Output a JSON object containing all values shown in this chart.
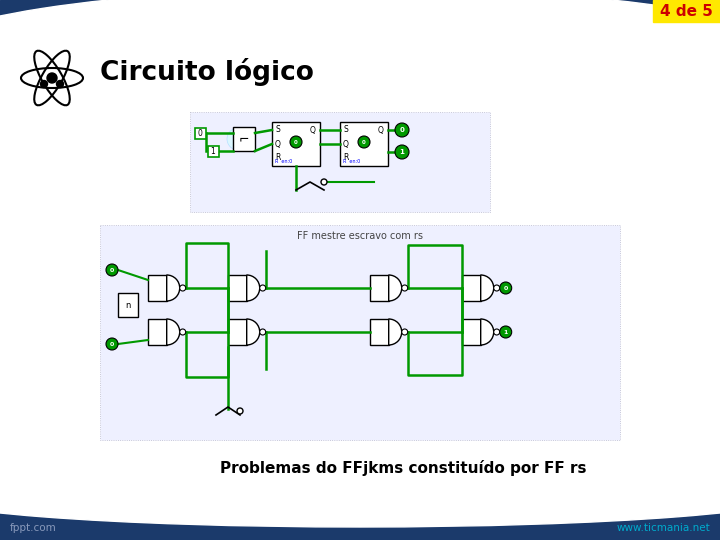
{
  "title": "Circuito lógico",
  "badge_text": "4 de 5",
  "badge_bg": "#FFE800",
  "badge_fg": "#CC0000",
  "header_dark": "#1B3A6B",
  "body_bg": "#FFFFFF",
  "subtitle": "Problemas do FFjkms constituído por FF rs",
  "footer_left": "fppt.com",
  "footer_right": "www.ticmania.net",
  "circuit2_label": "FF mestre escravo com rs",
  "green": "#009900",
  "light_green": "#00BB00",
  "dot_bg": "#EEF0FF",
  "dot_border": "#BBBBCC"
}
